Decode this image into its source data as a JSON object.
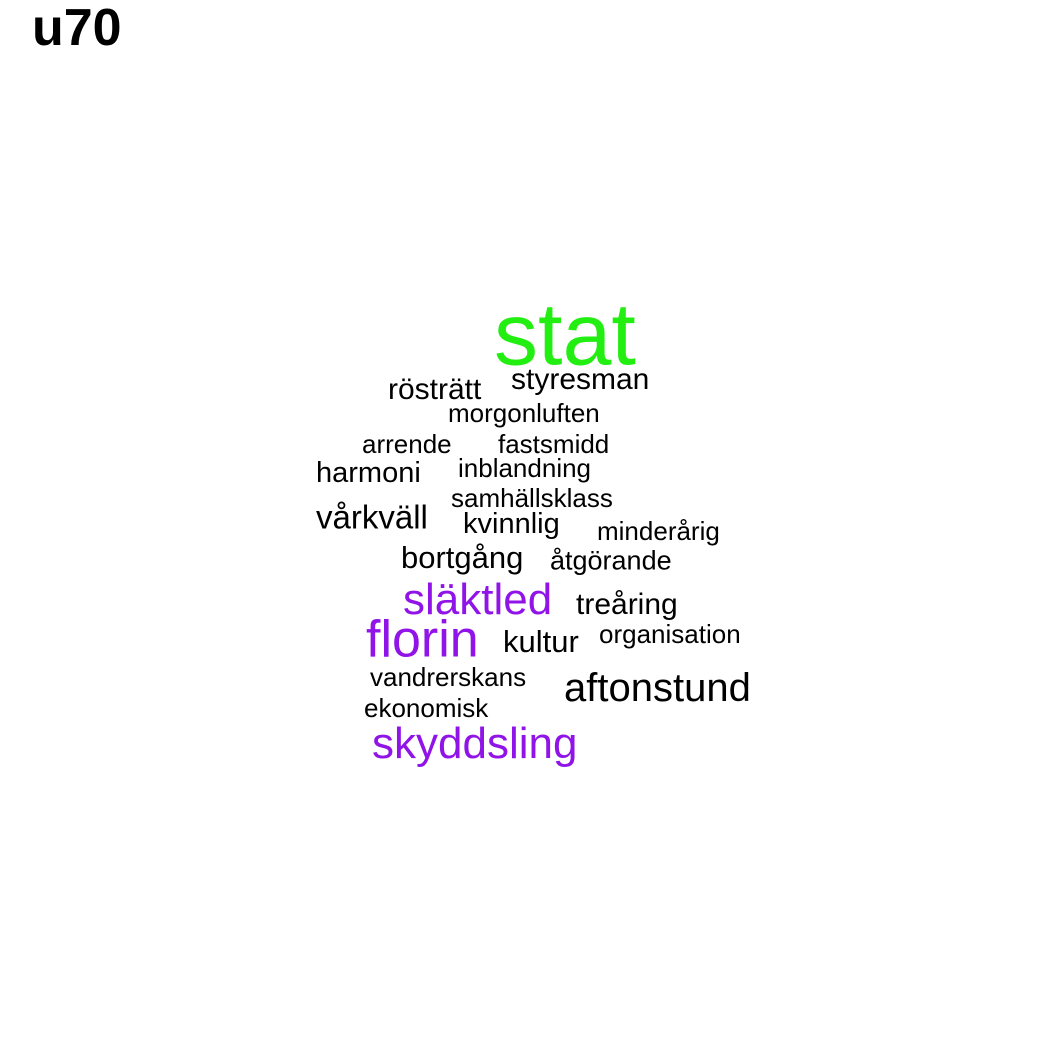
{
  "title": "u70",
  "colors": {
    "top": "#22ee11",
    "mid": "#9014e8",
    "base": "#000000"
  },
  "words": [
    {
      "text": "stat",
      "color": "top"
    },
    {
      "text": "rösträtt",
      "color": "base"
    },
    {
      "text": "styresman",
      "color": "base"
    },
    {
      "text": "morgonluften",
      "color": "base"
    },
    {
      "text": "arrende",
      "color": "base"
    },
    {
      "text": "fastsmidd",
      "color": "base"
    },
    {
      "text": "harmoni",
      "color": "base"
    },
    {
      "text": "inblandning",
      "color": "base"
    },
    {
      "text": "samhällsklass",
      "color": "base"
    },
    {
      "text": "vårkväll",
      "color": "base"
    },
    {
      "text": "kvinnlig",
      "color": "base"
    },
    {
      "text": "minderårig",
      "color": "base"
    },
    {
      "text": "bortgång",
      "color": "base"
    },
    {
      "text": "åtgörande",
      "color": "base"
    },
    {
      "text": "släktled",
      "color": "mid"
    },
    {
      "text": "treåring",
      "color": "base"
    },
    {
      "text": "florin",
      "color": "mid"
    },
    {
      "text": "kultur",
      "color": "base"
    },
    {
      "text": "organisation",
      "color": "base"
    },
    {
      "text": "vandrerskans",
      "color": "base"
    },
    {
      "text": "aftonstund",
      "color": "base"
    },
    {
      "text": "ekonomisk",
      "color": "base"
    },
    {
      "text": "skyddsling",
      "color": "mid"
    }
  ]
}
